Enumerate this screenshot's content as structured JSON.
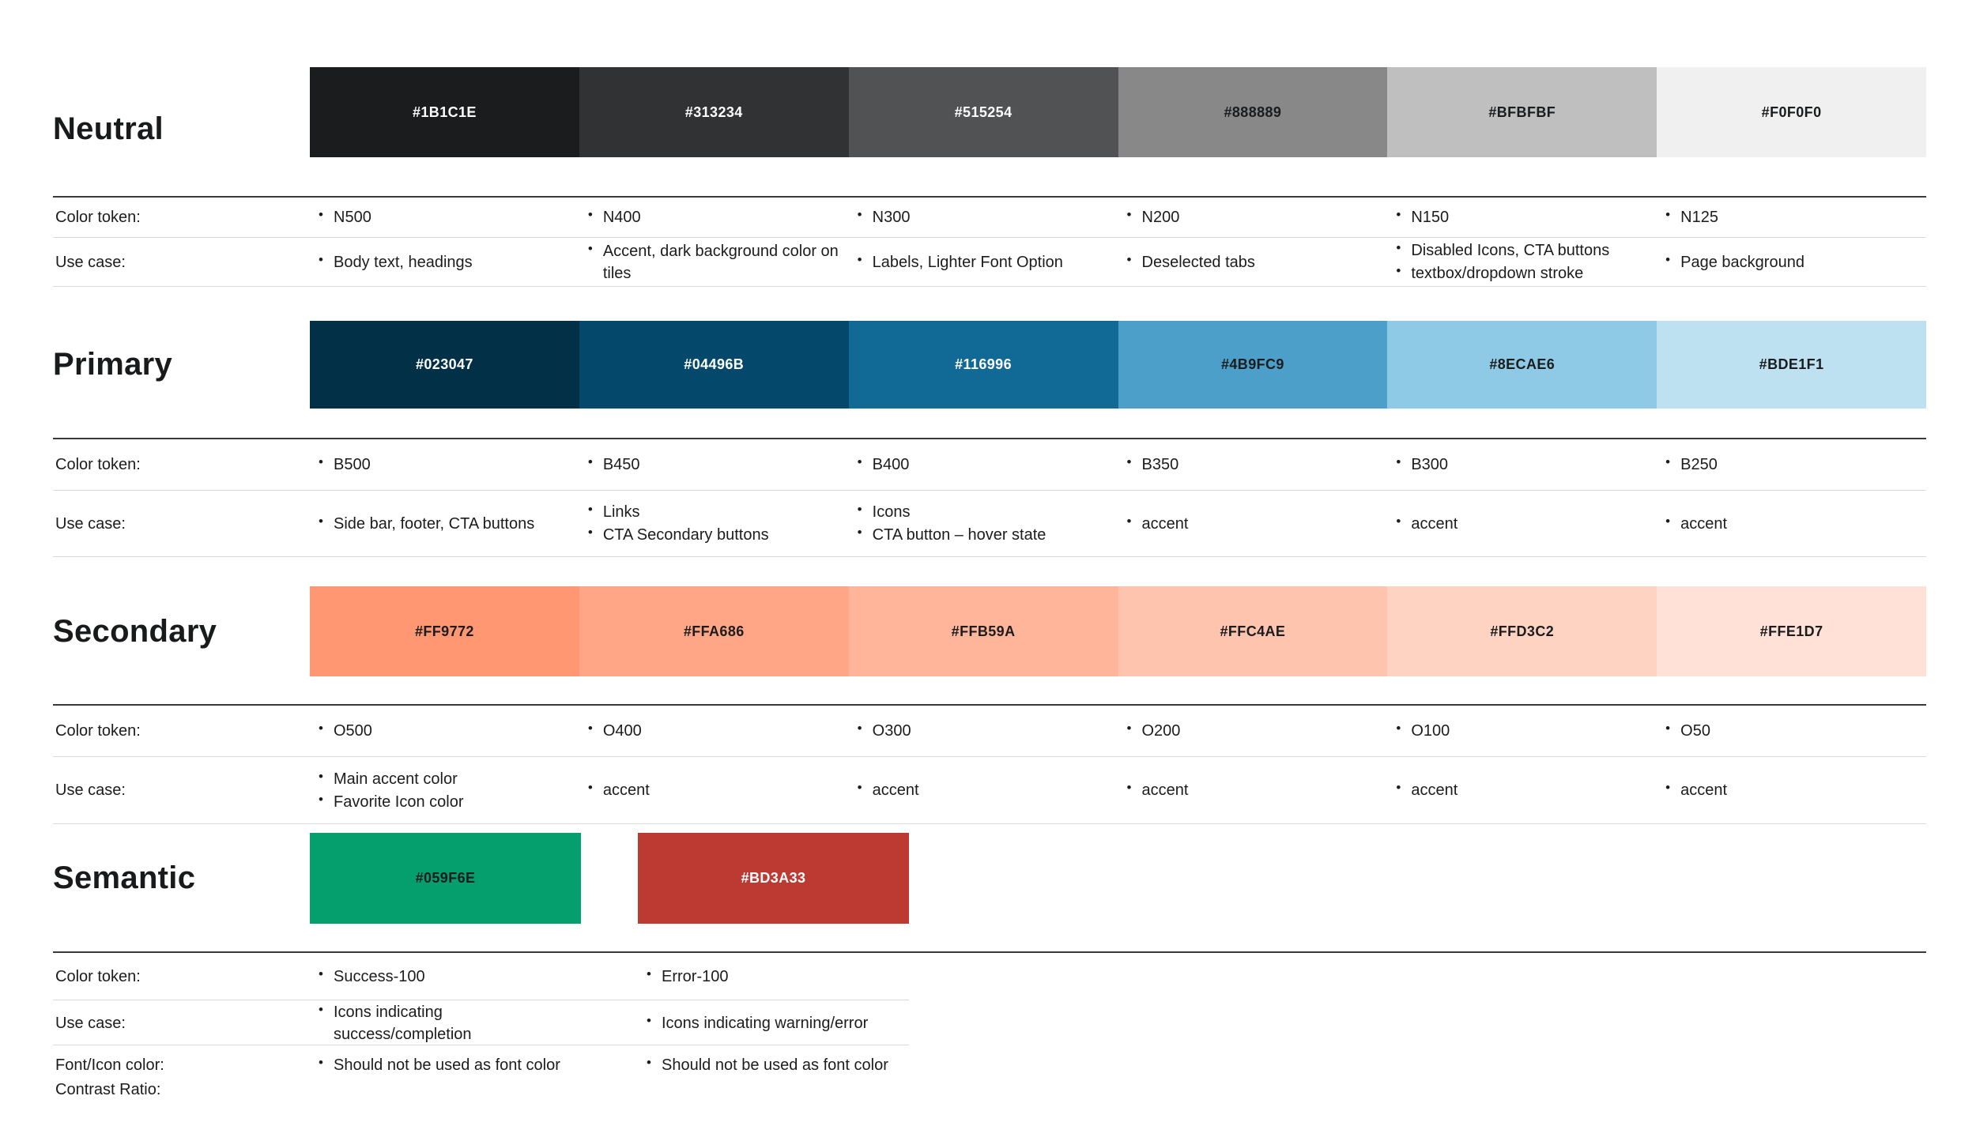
{
  "labels": {
    "color_token": "Color token:",
    "use_case": "Use case:",
    "font_icon": "Font/Icon color:",
    "contrast": "Contrast Ratio:"
  },
  "colors": {
    "page_background": "#FFFFFF",
    "text": "#1C1C1E",
    "divider_dark": "#3A3A3A",
    "divider_light": "#D9D9D9"
  },
  "sections": [
    {
      "title": "Neutral",
      "swatches": [
        {
          "hex": "#1B1C1E",
          "text": "light"
        },
        {
          "hex": "#313234",
          "text": "light"
        },
        {
          "hex": "#515254",
          "text": "light"
        },
        {
          "hex": "#888889",
          "text": "dark"
        },
        {
          "hex": "#BFBFBF",
          "text": "dark"
        },
        {
          "hex": "#F0F0F0",
          "text": "dark"
        }
      ],
      "tokens": [
        "N500",
        "N400",
        "N300",
        "N200",
        "N150",
        "N125"
      ],
      "use_cases": [
        [
          "Body text, headings"
        ],
        [
          "Accent, dark background color on tiles"
        ],
        [
          "Labels, Lighter Font Option"
        ],
        [
          "Deselected tabs"
        ],
        [
          "Disabled Icons, CTA buttons",
          "textbox/dropdown stroke"
        ],
        [
          "Page background"
        ]
      ]
    },
    {
      "title": "Primary",
      "swatches": [
        {
          "hex": "#023047",
          "text": "light"
        },
        {
          "hex": "#04496B",
          "text": "light"
        },
        {
          "hex": "#116996",
          "text": "light"
        },
        {
          "hex": "#4B9FC9",
          "text": "dark"
        },
        {
          "hex": "#8ECAE6",
          "text": "dark"
        },
        {
          "hex": "#BDE1F1",
          "text": "dark"
        }
      ],
      "tokens": [
        "B500",
        "B450",
        "B400",
        "B350",
        "B300",
        "B250"
      ],
      "use_cases": [
        [
          "Side bar, footer, CTA buttons"
        ],
        [
          "Links",
          "CTA Secondary buttons"
        ],
        [
          "Icons",
          "CTA button – hover state"
        ],
        [
          "accent"
        ],
        [
          "accent"
        ],
        [
          "accent"
        ]
      ]
    },
    {
      "title": "Secondary",
      "swatches": [
        {
          "hex": "#FF9772",
          "text": "dark"
        },
        {
          "hex": "#FFA686",
          "text": "dark"
        },
        {
          "hex": "#FFB59A",
          "text": "dark"
        },
        {
          "hex": "#FFC4AE",
          "text": "dark"
        },
        {
          "hex": "#FFD3C2",
          "text": "dark"
        },
        {
          "hex": "#FFE1D7",
          "text": "dark"
        }
      ],
      "tokens": [
        "O500",
        "O400",
        "O300",
        "O200",
        "O100",
        "O50"
      ],
      "use_cases": [
        [
          "Main accent color",
          "Favorite Icon color"
        ],
        [
          "accent"
        ],
        [
          "accent"
        ],
        [
          "accent"
        ],
        [
          "accent"
        ],
        [
          "accent"
        ]
      ]
    },
    {
      "title": "Semantic",
      "swatches": [
        {
          "hex": "#059F6E",
          "text": "dark"
        },
        {
          "hex": "#BD3A33",
          "text": "light"
        }
      ],
      "tokens": [
        "Success-100",
        "Error-100"
      ],
      "use_cases": [
        [
          "Icons indicating success/completion"
        ],
        [
          "Icons indicating warning/error"
        ]
      ],
      "font_icon_notes": [
        "Should not be used as font color",
        "Should not be used as font color"
      ]
    }
  ]
}
